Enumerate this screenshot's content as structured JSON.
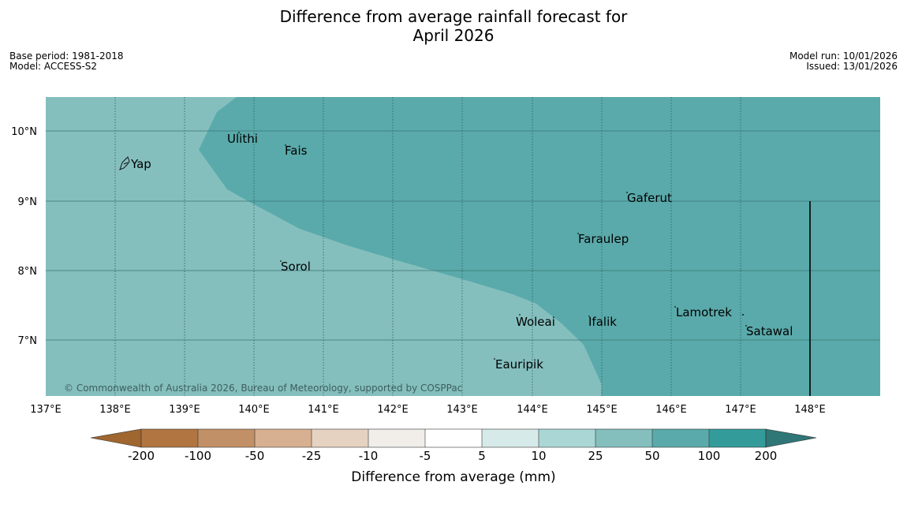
{
  "title": {
    "line1": "Difference from average rainfall forecast for",
    "line2": "April 2026"
  },
  "meta_left": {
    "base_period": "Base period: 1981-2018",
    "model": "Model: ACCESS-S2"
  },
  "meta_right": {
    "model_run": "Model run: 10/01/2026",
    "issued": "Issued: 13/01/2026"
  },
  "map": {
    "lon_labels": [
      "137°E",
      "138°E",
      "139°E",
      "140°E",
      "141°E",
      "142°E",
      "143°E",
      "144°E",
      "145°E",
      "146°E",
      "147°E",
      "148°E"
    ],
    "lat_labels": [
      "10°N",
      "9°N",
      "8°N",
      "7°N"
    ],
    "places": [
      {
        "name": "Yap"
      },
      {
        "name": "Ulithi"
      },
      {
        "name": "Fais"
      },
      {
        "name": "Gaferut"
      },
      {
        "name": "Faraulep"
      },
      {
        "name": "Sorol"
      },
      {
        "name": "Lamotrek"
      },
      {
        "name": "Woleai"
      },
      {
        "name": "Ifalik"
      },
      {
        "name": "Satawal"
      },
      {
        "name": "Eauripik"
      }
    ],
    "copyright": "© Commonwealth of Australia 2026, Bureau of Meteorology, supported by COSPPac",
    "colors": {
      "class_25_50": "#84bfbe",
      "class_50_100": "#5aaaab"
    }
  },
  "legend": {
    "ticks": [
      "-200",
      "-100",
      "-50",
      "-25",
      "-10",
      "-5",
      "5",
      "10",
      "25",
      "50",
      "100",
      "200"
    ],
    "colors": [
      "#a0662f",
      "#b07540",
      "#c29066",
      "#d6b090",
      "#e6d2c1",
      "#f1eeea",
      "#ffffff",
      "#d6eae9",
      "#abd6d6",
      "#84bfbe",
      "#5aaaab",
      "#339c9b",
      "#2f7677"
    ],
    "label": "Difference from average (mm)"
  }
}
